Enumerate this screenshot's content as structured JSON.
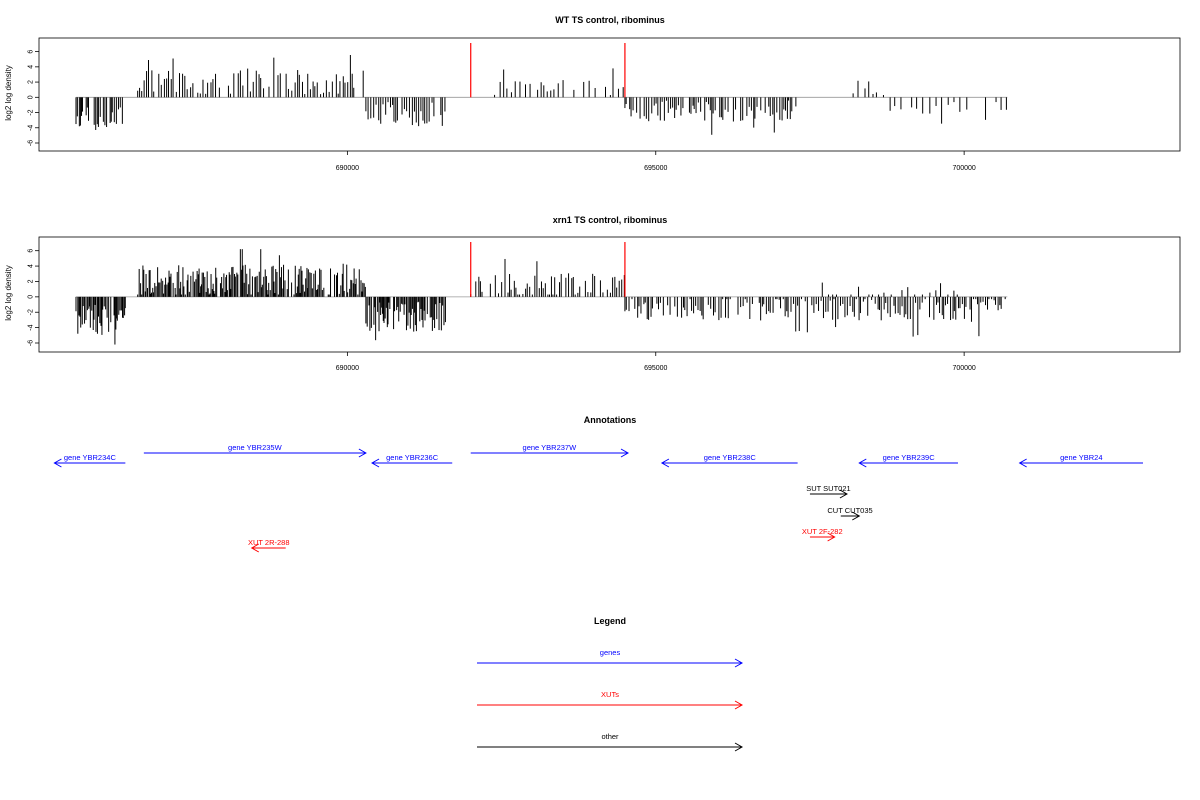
{
  "chart_data": [
    {
      "type": "bar",
      "title": "WT TS control, ribominus",
      "ylabel": "log2 log density",
      "xlim": [
        685000,
        703500
      ],
      "ylim": [
        -6.5,
        6.5
      ],
      "yticks": [
        -6,
        -4,
        -2,
        0,
        2,
        4,
        6
      ],
      "xticks": [
        690000,
        695000,
        700000
      ],
      "markers": [
        692000,
        694500
      ],
      "marker_color": "#ff0000",
      "bar_color": "#000000",
      "segments": [
        {
          "start": 685600,
          "end": 686400,
          "sign": -1,
          "mean": 2.8,
          "amp": 1.6,
          "step": 25
        },
        {
          "start": 686600,
          "end": 690300,
          "sign": 1,
          "mean": 2.0,
          "amp": 1.6,
          "step": 40
        },
        {
          "start": 690300,
          "end": 691600,
          "sign": -1,
          "mean": 2.2,
          "amp": 1.6,
          "step": 35
        },
        {
          "start": 692300,
          "end": 694500,
          "sign": 1,
          "mean": 1.1,
          "amp": 1.2,
          "step": 70
        },
        {
          "start": 694500,
          "end": 697300,
          "sign": -1,
          "mean": 1.8,
          "amp": 1.4,
          "step": 30
        },
        {
          "start": 698200,
          "end": 698700,
          "sign": 1,
          "mean": 1.0,
          "amp": 1.2,
          "step": 90
        },
        {
          "start": 698800,
          "end": 700700,
          "sign": -1,
          "mean": 1.2,
          "amp": 1.0,
          "step": 90
        }
      ]
    },
    {
      "type": "bar",
      "title": "xrn1 TS control, ribominus",
      "ylabel": "log2 log density",
      "xlim": [
        685000,
        703500
      ],
      "ylim": [
        -6.5,
        6.5
      ],
      "yticks": [
        -6,
        -4,
        -2,
        0,
        2,
        4,
        6
      ],
      "xticks": [
        690000,
        695000,
        700000
      ],
      "markers": [
        692000,
        694500
      ],
      "marker_color": "#ff0000",
      "bar_color": "#000000",
      "segments": [
        {
          "start": 685600,
          "end": 686400,
          "sign": -1,
          "mean": 3.0,
          "amp": 2.0,
          "step": 18
        },
        {
          "start": 686600,
          "end": 690300,
          "sign": 1,
          "mean": 2.2,
          "amp": 2.0,
          "step": 18
        },
        {
          "start": 690300,
          "end": 691600,
          "sign": -1,
          "mean": 2.6,
          "amp": 2.0,
          "step": 18
        },
        {
          "start": 692000,
          "end": 694500,
          "sign": 1,
          "mean": 1.3,
          "amp": 1.8,
          "step": 40
        },
        {
          "start": 694500,
          "end": 700700,
          "sign": -1,
          "mean": 1.5,
          "amp": 1.6,
          "step": 35
        },
        {
          "start": 697700,
          "end": 699900,
          "sign": 1,
          "mean": 0.6,
          "amp": 1.3,
          "step": 90
        }
      ]
    }
  ],
  "annotations": {
    "title": "Annotations",
    "features": [
      {
        "label": "gene YBR234C",
        "start": 686400,
        "end": 685250,
        "lane": 0,
        "color": "#0000ff",
        "dir": "left"
      },
      {
        "label": "gene YBR235W",
        "start": 686700,
        "end": 690300,
        "lane": 1,
        "color": "#0000ff",
        "dir": "right"
      },
      {
        "label": "gene YBR236C",
        "start": 691700,
        "end": 690400,
        "lane": 0,
        "color": "#0000ff",
        "dir": "left"
      },
      {
        "label": "gene YBR237W",
        "start": 692000,
        "end": 694550,
        "lane": 1,
        "color": "#0000ff",
        "dir": "right"
      },
      {
        "label": "gene YBR238C",
        "start": 697300,
        "end": 695100,
        "lane": 0,
        "color": "#0000ff",
        "dir": "left"
      },
      {
        "label": "gene YBR239C",
        "start": 699900,
        "end": 698300,
        "lane": 0,
        "color": "#0000ff",
        "dir": "left"
      },
      {
        "label": "gene YBR24",
        "start": 702900,
        "end": 700900,
        "lane": 0,
        "color": "#0000ff",
        "dir": "left"
      },
      {
        "label": "SUT SUT021",
        "start": 697500,
        "end": 698100,
        "lane": 2,
        "color": "#000000",
        "dir": "right"
      },
      {
        "label": "CUT CUT035",
        "start": 698000,
        "end": 698300,
        "lane": 3,
        "color": "#000000",
        "dir": "right"
      },
      {
        "label": "XUT 2F-282",
        "start": 697500,
        "end": 697900,
        "lane": 4,
        "color": "#ff0000",
        "dir": "right"
      },
      {
        "label": "XUT 2R-288",
        "start": 689000,
        "end": 688450,
        "lane": 5,
        "color": "#ff0000",
        "dir": "left"
      }
    ]
  },
  "legend": {
    "title": "Legend",
    "items": [
      {
        "label": "genes",
        "color": "#0000ff"
      },
      {
        "label": "XUTs",
        "color": "#ff0000"
      },
      {
        "label": "other",
        "color": "#000000"
      }
    ]
  }
}
